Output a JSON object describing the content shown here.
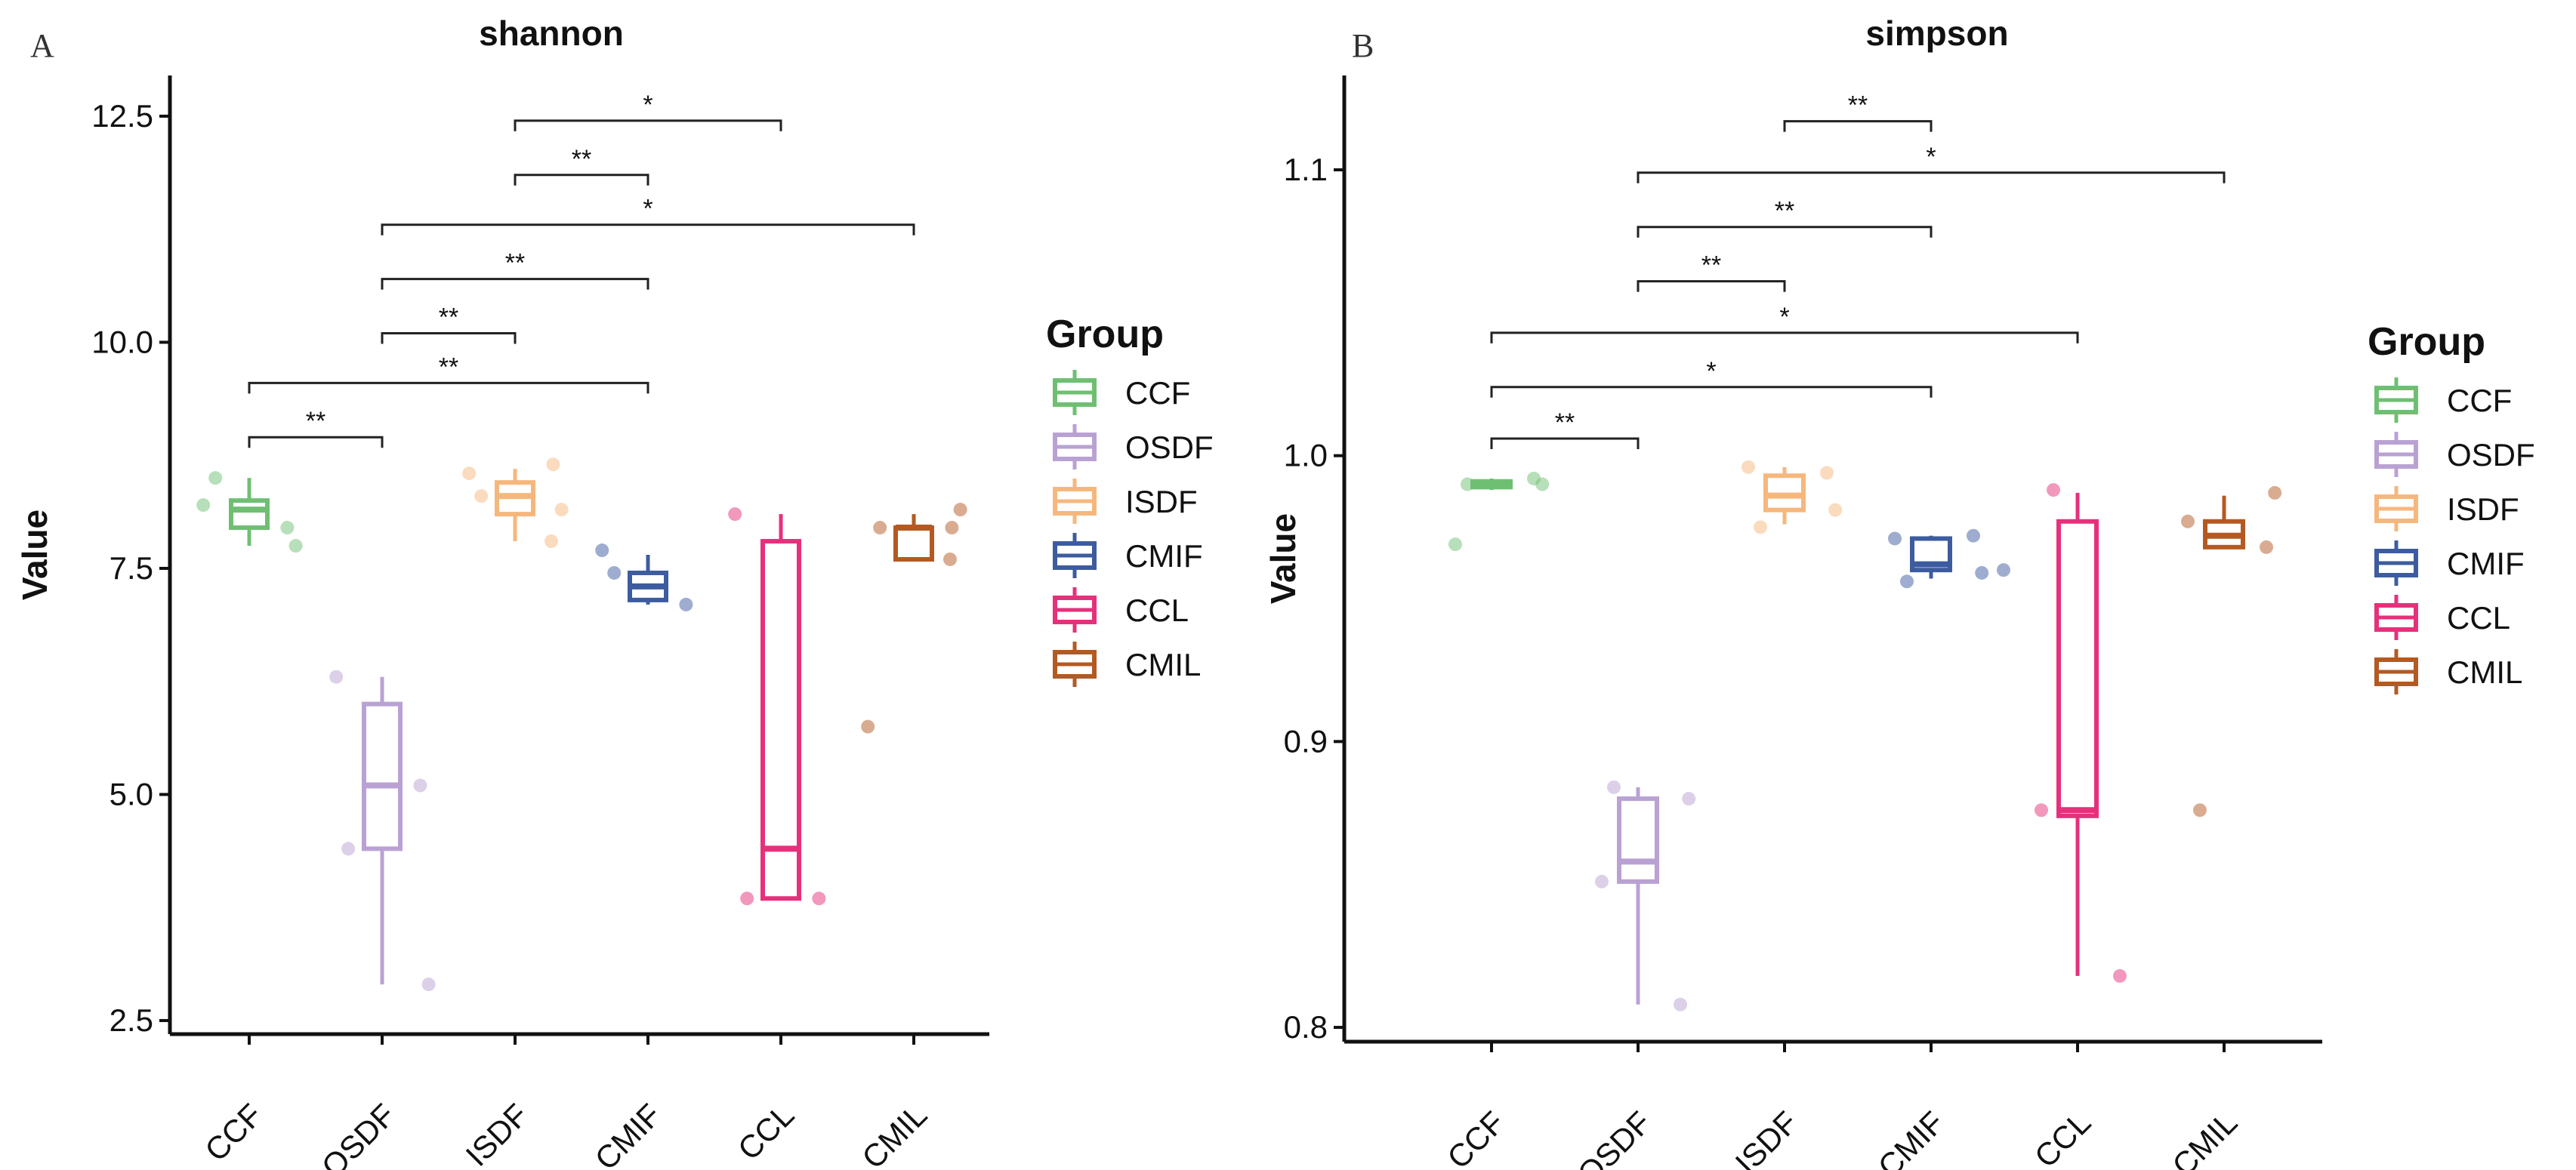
{
  "chart_data": [
    {
      "type": "box",
      "panel_label": "A",
      "title": "shannon",
      "xlabel": "",
      "ylabel": "Value",
      "ylim": [
        2.35,
        12.95
      ],
      "yticks": [
        2.5,
        5.0,
        7.5,
        10.0,
        12.5
      ],
      "ytick_labels": [
        "2.5",
        "5.0",
        "7.5",
        "10.0",
        "12.5"
      ],
      "categories": [
        "CCF",
        "OSDF",
        "ISDF",
        "CMIF",
        "CCL",
        "CMIL"
      ],
      "boxes": [
        {
          "group": "CCF",
          "min": 7.75,
          "q1": 7.95,
          "median": 8.15,
          "q3": 8.25,
          "max": 8.5,
          "points": [
            8.2,
            7.95,
            8.5,
            7.75
          ]
        },
        {
          "group": "OSDF",
          "min": 2.9,
          "q1": 4.4,
          "median": 5.1,
          "q3": 6.0,
          "max": 6.3,
          "points": [
            6.3,
            5.1,
            4.4,
            2.9
          ]
        },
        {
          "group": "ISDF",
          "min": 7.8,
          "q1": 8.1,
          "median": 8.3,
          "q3": 8.45,
          "max": 8.6,
          "points": [
            8.55,
            8.65,
            8.3,
            8.15,
            7.8
          ]
        },
        {
          "group": "CMIF",
          "min": 7.1,
          "q1": 7.15,
          "median": 7.3,
          "q3": 7.45,
          "max": 7.65,
          "points": [
            7.7,
            7.1,
            7.45
          ]
        },
        {
          "group": "CCL",
          "min": 3.85,
          "q1": 3.85,
          "median": 4.4,
          "q3": 7.8,
          "max": 8.1,
          "points": [
            8.1,
            3.85,
            3.85
          ]
        },
        {
          "group": "CMIL",
          "min": 7.6,
          "q1": 7.6,
          "median": 7.95,
          "q3": 7.95,
          "max": 8.1,
          "points": [
            5.75,
            7.95,
            7.95,
            8.15,
            7.6
          ]
        }
      ],
      "significance": [
        {
          "from": "CCF",
          "to": "OSDF",
          "y": 8.95,
          "label": "**"
        },
        {
          "from": "CCF",
          "to": "CMIF",
          "y": 9.55,
          "label": "**"
        },
        {
          "from": "OSDF",
          "to": "ISDF",
          "y": 10.1,
          "label": "**"
        },
        {
          "from": "OSDF",
          "to": "CMIF",
          "y": 10.7,
          "label": "**"
        },
        {
          "from": "OSDF",
          "to": "CMIL",
          "y": 11.3,
          "label": "*"
        },
        {
          "from": "ISDF",
          "to": "CMIF",
          "y": 11.85,
          "label": "**"
        },
        {
          "from": "ISDF",
          "to": "CCL",
          "y": 12.45,
          "label": "*"
        }
      ]
    },
    {
      "type": "box",
      "panel_label": "B",
      "title": "simpson",
      "xlabel": "",
      "ylabel": "Value",
      "ylim": [
        0.795,
        1.133
      ],
      "yticks": [
        0.8,
        0.9,
        1.0,
        1.1
      ],
      "ytick_labels": [
        "0.8",
        "0.9",
        "1.0",
        "1.1"
      ],
      "categories": [
        "CCF",
        "OSDF",
        "ISDF",
        "CMIF",
        "CCL",
        "CMIL"
      ],
      "boxes": [
        {
          "group": "CCF",
          "min": 0.988,
          "q1": 0.989,
          "median": 0.99,
          "q3": 0.991,
          "max": 0.992,
          "points": [
            0.969,
            0.992,
            0.99,
            0.99
          ]
        },
        {
          "group": "OSDF",
          "min": 0.808,
          "q1": 0.851,
          "median": 0.858,
          "q3": 0.88,
          "max": 0.884,
          "points": [
            0.851,
            0.808,
            0.884,
            0.88
          ]
        },
        {
          "group": "ISDF",
          "min": 0.976,
          "q1": 0.981,
          "median": 0.986,
          "q3": 0.993,
          "max": 0.996,
          "points": [
            0.996,
            0.994,
            0.975,
            0.981
          ]
        },
        {
          "group": "CMIF",
          "min": 0.957,
          "q1": 0.96,
          "median": 0.962,
          "q3": 0.971,
          "max": 0.972,
          "points": [
            0.971,
            0.972,
            0.956,
            0.959,
            0.96
          ]
        },
        {
          "group": "CCL",
          "min": 0.818,
          "q1": 0.874,
          "median": 0.876,
          "q3": 0.977,
          "max": 0.987,
          "points": [
            0.876,
            0.818,
            0.988
          ]
        },
        {
          "group": "CMIL",
          "min": 0.968,
          "q1": 0.968,
          "median": 0.972,
          "q3": 0.977,
          "max": 0.986,
          "points": [
            0.977,
            0.968,
            0.876,
            0.987
          ]
        }
      ],
      "significance": [
        {
          "from": "CCF",
          "to": "OSDF",
          "y": 1.006,
          "label": "**"
        },
        {
          "from": "CCF",
          "to": "CMIF",
          "y": 1.024,
          "label": "*"
        },
        {
          "from": "CCF",
          "to": "CCL",
          "y": 1.043,
          "label": "*"
        },
        {
          "from": "OSDF",
          "to": "ISDF",
          "y": 1.061,
          "label": "**"
        },
        {
          "from": "OSDF",
          "to": "CMIF",
          "y": 1.08,
          "label": "**"
        },
        {
          "from": "OSDF",
          "to": "CMIL",
          "y": 1.099,
          "label": "*"
        },
        {
          "from": "ISDF",
          "to": "CMIF",
          "y": 1.117,
          "label": "**"
        }
      ]
    }
  ],
  "legend": {
    "title": "Group",
    "items": [
      {
        "label": "CCF",
        "color": "#6fbf73"
      },
      {
        "label": "OSDF",
        "color": "#b9a2d3"
      },
      {
        "label": "ISDF",
        "color": "#f6b77d"
      },
      {
        "label": "CMIF",
        "color": "#3d5c9f"
      },
      {
        "label": "CCL",
        "color": "#e5317b"
      },
      {
        "label": "CMIL",
        "color": "#b35a23"
      }
    ]
  }
}
